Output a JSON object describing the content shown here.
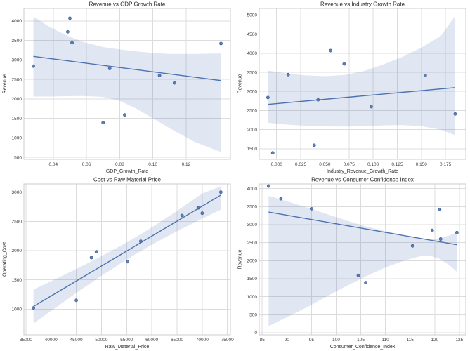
{
  "figure": {
    "background": "#ffffff",
    "accent_color": "#4c72b0",
    "point_fill": "#4e71ad",
    "point_edge": "#35598e",
    "grid_color": "#dcdcdc",
    "spine_color": "#cccccc",
    "band_opacity": 0.17,
    "title_color": "#262626",
    "tick_color": "#3d3d3d",
    "label_color": "#2e2e2e"
  },
  "chart_data": [
    {
      "type": "scatter",
      "name": "revenue-vs-gdp-growth-rate",
      "title": "Revenue vs GDP Growth Rate",
      "xlabel": "GDP_Growth_Rate",
      "ylabel": "Revenue",
      "x": [
        0.028,
        0.0487,
        0.05,
        0.0513,
        0.07,
        0.074,
        0.083,
        0.104,
        0.113,
        0.141
      ],
      "y": [
        2840,
        3720,
        4070,
        3440,
        1390,
        2780,
        1590,
        2600,
        2410,
        3420
      ],
      "xlim": [
        0.0223,
        0.1467
      ],
      "ylim": [
        450,
        4320
      ],
      "xticks": [
        0.04,
        0.06,
        0.08,
        0.1,
        0.12
      ],
      "xtick_labels": [
        "0.04",
        "0.06",
        "0.08",
        "0.10",
        "0.12"
      ],
      "yticks": [
        500,
        1000,
        1500,
        2000,
        2500,
        3000,
        3500,
        4000
      ],
      "ytick_labels": [
        "500",
        "1000",
        "1500",
        "2000",
        "2500",
        "3000",
        "3500",
        "4000"
      ],
      "regression_line": {
        "x1": 0.028,
        "y1": 3090,
        "x2": 0.141,
        "y2": 2470
      },
      "ci_band": {
        "x": [
          0.028,
          0.038,
          0.048,
          0.058,
          0.07,
          0.08,
          0.09,
          0.1,
          0.11,
          0.125,
          0.141
        ],
        "upper": [
          4110,
          3840,
          3630,
          3460,
          3330,
          3270,
          3220,
          3180,
          3155,
          3155,
          3165
        ],
        "lower": [
          2060,
          2060,
          2070,
          2075,
          2050,
          1950,
          1750,
          1500,
          1250,
          900,
          640
        ]
      },
      "grid": true
    },
    {
      "type": "scatter",
      "name": "revenue-vs-industry-growth-rate",
      "title": "Revenue vs Industry Growth Rate",
      "xlabel": "Industry_Revenue_Growth_Rate",
      "ylabel": "Revenue",
      "x": [
        -0.009,
        -0.004,
        0.012,
        0.039,
        0.043,
        0.056,
        0.07,
        0.098,
        0.154,
        0.185
      ],
      "y": [
        2840,
        1390,
        3440,
        1590,
        2780,
        4070,
        3720,
        2600,
        3420,
        2410
      ],
      "xlim": [
        -0.018,
        0.196
      ],
      "ylim": [
        1220,
        5175
      ],
      "xticks": [
        0.0,
        0.025,
        0.05,
        0.075,
        0.1,
        0.125,
        0.15,
        0.175
      ],
      "xtick_labels": [
        "0.000",
        "0.025",
        "0.050",
        "0.075",
        "0.100",
        "0.125",
        "0.150",
        "0.175"
      ],
      "yticks": [
        1500,
        2000,
        2500,
        3000,
        3500,
        4000,
        4500,
        5000
      ],
      "ytick_labels": [
        "1500",
        "2000",
        "2500",
        "3000",
        "3500",
        "4000",
        "4500",
        "5000"
      ],
      "regression_line": {
        "x1": -0.009,
        "y1": 2660,
        "x2": 0.185,
        "y2": 3100
      },
      "ci_band": {
        "x": [
          -0.009,
          0.01,
          0.03,
          0.05,
          0.07,
          0.09,
          0.11,
          0.13,
          0.15,
          0.17,
          0.185
        ],
        "upper": [
          3550,
          3470,
          3420,
          3400,
          3430,
          3530,
          3700,
          3900,
          4150,
          4450,
          4980
        ],
        "lower": [
          2180,
          2130,
          2100,
          2085,
          2080,
          2090,
          2110,
          2120,
          2090,
          2000,
          1850
        ]
      },
      "grid": true
    },
    {
      "type": "scatter",
      "name": "cost-vs-raw-material-price",
      "title": "Cost vs Raw Material Price",
      "xlabel": "Raw_Material_Price",
      "ylabel": "Operating_Cost",
      "x": [
        36500,
        45000,
        48000,
        49000,
        55200,
        57800,
        66000,
        69200,
        70000,
        73700
      ],
      "y": [
        1020,
        1150,
        1880,
        1980,
        1810,
        2160,
        2600,
        2730,
        2640,
        3000
      ],
      "xlim": [
        34600,
        75600
      ],
      "ylim": [
        560,
        3140
      ],
      "xticks": [
        35000,
        40000,
        45000,
        50000,
        55000,
        60000,
        65000,
        70000,
        75000
      ],
      "xtick_labels": [
        "35000",
        "40000",
        "45000",
        "50000",
        "55000",
        "60000",
        "65000",
        "70000",
        "75000"
      ],
      "yticks": [
        1000,
        1500,
        2000,
        2500,
        3000
      ],
      "ytick_labels": [
        "1000",
        "1500",
        "2000",
        "2500",
        "3000"
      ],
      "regression_line": {
        "x1": 36500,
        "y1": 1045,
        "x2": 73700,
        "y2": 2950
      },
      "ci_band": {
        "x": [
          36500,
          40000,
          45000,
          50000,
          55000,
          57040,
          60000,
          65000,
          70000,
          73700
        ],
        "upper": [
          1335,
          1478,
          1687,
          1905,
          2140,
          2242,
          2398,
          2679,
          2977,
          3100
        ],
        "lower": [
          755,
          970,
          1275,
          1569,
          1846,
          1954,
          2100,
          2331,
          2547,
          2700
        ]
      },
      "grid": true
    },
    {
      "type": "scatter",
      "name": "revenue-vs-consumer-confidence-index",
      "title": "Revenue vs Consumer Confidence Index",
      "xlabel": "Consumer_Confidence_Index",
      "ylabel": "Revenue",
      "x": [
        86.3,
        88.8,
        95.0,
        104.5,
        106.0,
        115.5,
        119.5,
        121.0,
        121.2,
        124.5
      ],
      "y": [
        4070,
        3720,
        3440,
        1590,
        1390,
        2410,
        2840,
        3420,
        2600,
        2780
      ],
      "xlim": [
        84.4,
        126.3
      ],
      "ylim": [
        -60,
        4130
      ],
      "xticks": [
        85,
        90,
        95,
        100,
        105,
        110,
        115,
        120,
        125
      ],
      "xtick_labels": [
        "85",
        "90",
        "95",
        "100",
        "105",
        "110",
        "115",
        "120",
        "125"
      ],
      "yticks": [
        0,
        500,
        1000,
        1500,
        2000,
        2500,
        3000,
        3500,
        4000
      ],
      "ytick_labels": [
        "0",
        "500",
        "1000",
        "1500",
        "2000",
        "2500",
        "3000",
        "3500",
        "4000"
      ],
      "regression_line": {
        "x1": 86.3,
        "y1": 3350,
        "x2": 124.5,
        "y2": 2440
      },
      "ci_band": {
        "x": [
          86.3,
          90,
          94,
          98,
          102,
          106,
          110,
          114,
          117,
          119,
          121,
          123,
          124.5
        ],
        "upper": [
          3800,
          3650,
          3480,
          3300,
          3120,
          2950,
          2820,
          2700,
          2620,
          2580,
          2620,
          2700,
          2790
        ],
        "lower": [
          180,
          430,
          700,
          1000,
          1290,
          1560,
          1810,
          2010,
          2120,
          2140,
          2050,
          1870,
          1690
        ]
      },
      "grid": true
    }
  ]
}
